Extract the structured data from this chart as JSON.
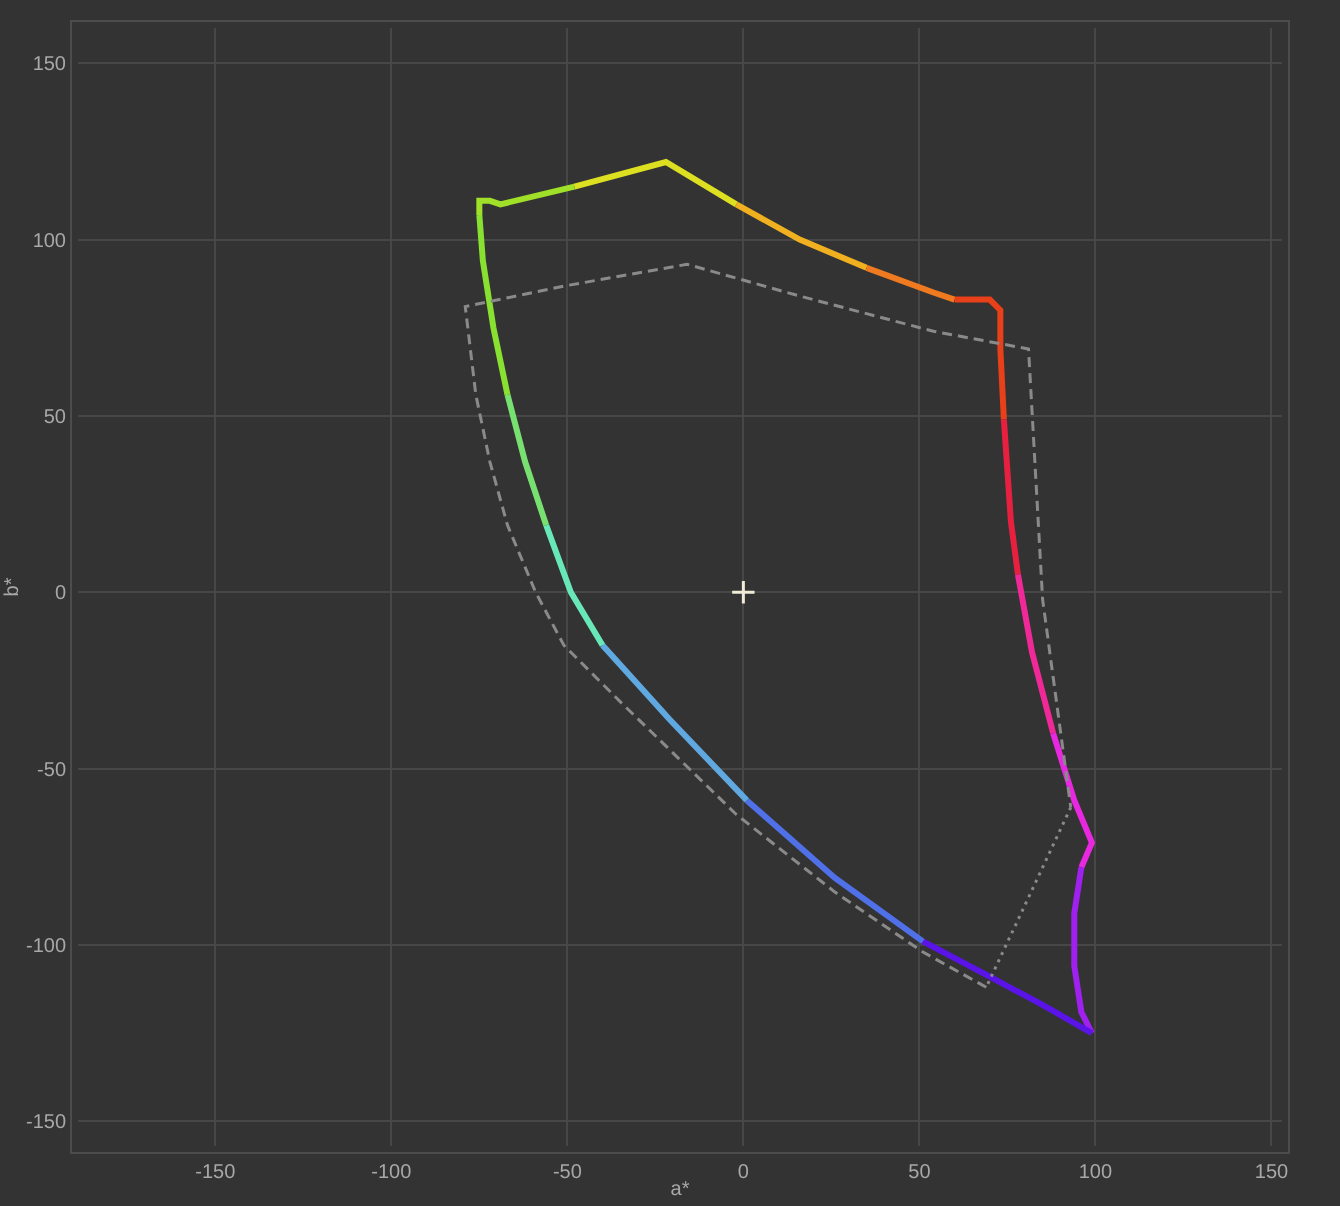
{
  "chart_data": {
    "type": "line",
    "xlabel": "a*",
    "ylabel": "b*",
    "xlim": [
      -189,
      153
    ],
    "ylim": [
      -157,
      160
    ],
    "xticks": [
      -150,
      -100,
      -50,
      0,
      50,
      100,
      150
    ],
    "yticks": [
      -150,
      -100,
      -50,
      0,
      50,
      100,
      150
    ],
    "grid": true,
    "series": [
      {
        "color": "#a0e028",
        "x": [
          -75,
          -75,
          -72,
          -69,
          -48
        ],
        "values": [
          107,
          111,
          111,
          110,
          115
        ]
      },
      {
        "color": "#dde020",
        "x": [
          -48,
          -22,
          -2
        ],
        "values": [
          115,
          122,
          110
        ]
      },
      {
        "color": "#f0b020",
        "x": [
          -2,
          16,
          35
        ],
        "values": [
          110,
          100,
          92
        ]
      },
      {
        "color": "#f07a20",
        "x": [
          35,
          54,
          60
        ],
        "values": [
          92,
          85,
          83
        ]
      },
      {
        "color": "#e84018",
        "x": [
          60,
          70,
          73,
          73,
          74
        ],
        "values": [
          83,
          83,
          80,
          69,
          49
        ]
      },
      {
        "color": "#e82040",
        "x": [
          74,
          76,
          78
        ],
        "values": [
          49,
          20,
          5
        ]
      },
      {
        "color": "#f02898",
        "x": [
          78,
          82,
          88
        ],
        "values": [
          5,
          -17,
          -40
        ]
      },
      {
        "color": "#e828e0",
        "x": [
          88,
          94,
          99,
          96
        ],
        "values": [
          -40,
          -59,
          -71,
          -78
        ]
      },
      {
        "color": "#a020f0",
        "x": [
          96,
          94,
          94,
          96,
          99
        ],
        "values": [
          -78,
          -91,
          -106,
          -119,
          -125
        ]
      },
      {
        "color": "#5a14e8",
        "x": [
          99,
          85,
          70,
          51
        ],
        "values": [
          -125,
          -117,
          -109,
          -99
        ]
      },
      {
        "color": "#5070e8",
        "x": [
          51,
          26,
          1
        ],
        "values": [
          -99,
          -81,
          -59
        ]
      },
      {
        "color": "#60a8e0",
        "x": [
          1,
          -21,
          -40
        ],
        "values": [
          -59,
          -36,
          -15
        ]
      },
      {
        "color": "#68e8b8",
        "x": [
          -40,
          -49,
          -56
        ],
        "values": [
          -15,
          0,
          19
        ]
      },
      {
        "color": "#78e070",
        "x": [
          -56,
          -62,
          -67
        ],
        "values": [
          19,
          37,
          56
        ]
      },
      {
        "color": "#88e030",
        "x": [
          -67,
          -71,
          -74,
          -75
        ],
        "values": [
          56,
          75,
          94,
          107
        ]
      },
      {
        "color": "#8a8a8a",
        "line_style": "dashed",
        "x": [
          69,
          51,
          26,
          -2,
          -35,
          -51,
          -59,
          -67,
          -72,
          -76,
          -79,
          -50,
          -16,
          16,
          54,
          81,
          85,
          93
        ],
        "values": [
          -112,
          -102,
          -85,
          -63,
          -31,
          -15,
          0,
          19,
          37,
          56,
          81,
          87,
          93,
          84,
          74,
          69,
          -2,
          -61
        ]
      },
      {
        "color": "#8a8a8a",
        "line_style": "dotted",
        "x": [
          93,
          69
        ],
        "values": [
          -61,
          -112
        ]
      },
      {
        "type": "scatter",
        "marker": "cross",
        "color": "#f0ead6",
        "x": [
          0
        ],
        "values": [
          0
        ]
      }
    ]
  }
}
